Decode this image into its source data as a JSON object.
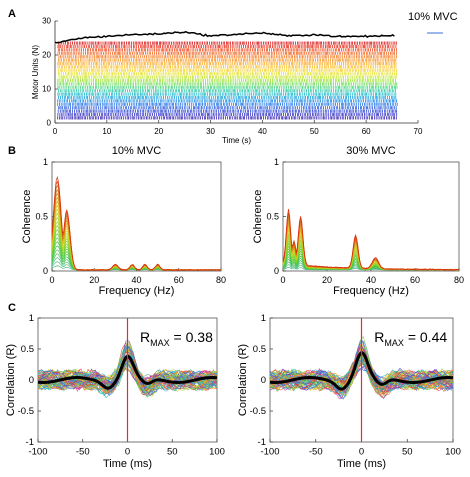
{
  "panels": {
    "a": "A",
    "b": "B",
    "c": "C"
  },
  "chart_data": [
    {
      "id": "motor-unit-raster",
      "type": "scatter",
      "annotation": "10% MVC",
      "xlabel": "Time (s)",
      "ylabel": "Motor Units (N)",
      "xlim": [
        0,
        70
      ],
      "ylim": [
        0,
        30
      ],
      "xticks": [
        0,
        10,
        20,
        30,
        40,
        50,
        60,
        70
      ],
      "yticks": [
        0,
        10,
        20,
        30
      ],
      "n_units": 23,
      "units_top_to_bottom_colors": [
        "#d7191c",
        "#e8321e",
        "#f04a1f",
        "#f26522",
        "#f47c24",
        "#f79427",
        "#f9ab2a",
        "#fbc02d",
        "#f6d42e",
        "#e6e22c",
        "#c8e62a",
        "#9fe33a",
        "#6fdc55",
        "#42d37a",
        "#28c8a2",
        "#1ab8c8",
        "#14a3dd",
        "#1a8be6",
        "#2274e8",
        "#2a5fe2",
        "#3049d6",
        "#3636c6",
        "#3a26b2"
      ],
      "force_trace": {
        "x": [
          0,
          5,
          10,
          15,
          20,
          25,
          30,
          35,
          40,
          45,
          50,
          55,
          60,
          65
        ],
        "y": [
          23.5,
          25.0,
          25.5,
          26.0,
          26.2,
          26.8,
          25.6,
          26.1,
          26.5,
          25.6,
          26.0,
          25.4,
          25.5,
          25.7
        ]
      }
    },
    {
      "id": "coherence-10",
      "type": "line",
      "title": "10% MVC",
      "xlabel": "Frequency (Hz)",
      "ylabel": "Coherence",
      "xlim": [
        0,
        80
      ],
      "ylim": [
        0,
        1
      ],
      "xticks": [
        0,
        20,
        40,
        60,
        80
      ],
      "yticks": [
        0,
        0.5,
        1
      ],
      "n_curves": 23,
      "peak_frequency_hz": 2,
      "peak_coherence": 0.85
    },
    {
      "id": "coherence-30",
      "type": "line",
      "title": "30% MVC",
      "xlabel": "Frequency (Hz)",
      "ylabel": "Coherence",
      "xlim": [
        0,
        80
      ],
      "ylim": [
        0,
        1
      ],
      "xticks": [
        0,
        20,
        40,
        60,
        80
      ],
      "yticks": [
        0,
        0.5,
        1
      ],
      "n_curves": 23,
      "peaks_hz": [
        3,
        8,
        33
      ],
      "peak_coherence": 0.5
    },
    {
      "id": "corr-10",
      "type": "line",
      "annotation_prefix": "R",
      "annotation_subscript": "MAX",
      "annotation_value": " = 0.38",
      "r_max": 0.38,
      "xlabel": "Time (ms)",
      "ylabel": "Correlation (R)",
      "xlim": [
        -100,
        100
      ],
      "ylim": [
        -1,
        1
      ],
      "xticks": [
        -100,
        -50,
        0,
        50,
        100
      ],
      "yticks": [
        -1,
        -0.5,
        0,
        0.5,
        1
      ]
    },
    {
      "id": "corr-30",
      "type": "line",
      "annotation_prefix": "R",
      "annotation_subscript": "MAX",
      "annotation_value": " = 0.44",
      "r_max": 0.44,
      "xlabel": "Time (ms)",
      "ylabel": "Correlation (R)",
      "xlim": [
        -100,
        100
      ],
      "ylim": [
        -1,
        1
      ],
      "xticks": [
        -100,
        -50,
        0,
        50,
        100
      ],
      "yticks": [
        -1,
        -0.5,
        0,
        0.5,
        1
      ]
    }
  ]
}
